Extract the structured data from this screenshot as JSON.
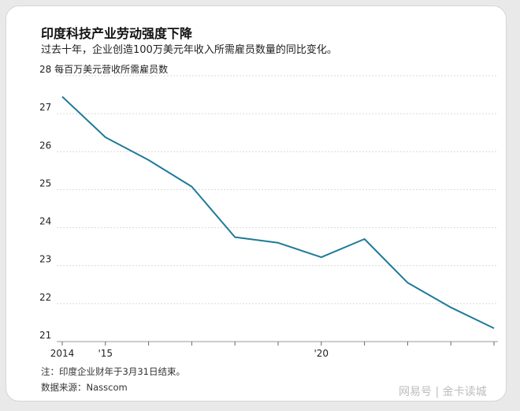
{
  "title": "印度科技产业劳动强度下降",
  "subtitle": "过去十年，企业创造100万美元年收入所需雇员数量的同比变化。",
  "note": "注：印度企业财年于3月31日结束。",
  "source": "数据来源：Nasscom",
  "watermark": "网易号 | 金卡读城",
  "chart_data": {
    "type": "line",
    "title": "印度科技产业劳动强度下降",
    "subtitle": "过去十年，企业创造100万美元年收入所需雇员数量的同比变化。",
    "ylabel": "每百万美元营收所需雇员数",
    "ylim": [
      21,
      28
    ],
    "yticks": [
      21,
      22,
      23,
      24,
      25,
      26,
      27,
      28
    ],
    "grid": true,
    "legend": "none",
    "xticks": [
      {
        "x": 2014,
        "label": "2014"
      },
      {
        "x": 2015,
        "label": "'15"
      },
      {
        "x": 2016,
        "label": ""
      },
      {
        "x": 2017,
        "label": ""
      },
      {
        "x": 2018,
        "label": ""
      },
      {
        "x": 2019,
        "label": ""
      },
      {
        "x": 2020,
        "label": "'20"
      },
      {
        "x": 2021,
        "label": ""
      },
      {
        "x": 2022,
        "label": ""
      },
      {
        "x": 2023,
        "label": ""
      },
      {
        "x": 2024,
        "label": ""
      }
    ],
    "xlim": [
      2014,
      2024
    ],
    "series": [
      {
        "color": "#1f7a99",
        "x": [
          2014.0,
          2015.0,
          2016.0,
          2017.0,
          2018.0,
          2019.0,
          2020.0,
          2021.0,
          2022.0,
          2023.0,
          2024.0
        ],
        "values": [
          27.45,
          26.38,
          25.78,
          25.08,
          23.75,
          23.6,
          23.22,
          23.7,
          22.55,
          21.9,
          21.35
        ]
      }
    ]
  }
}
